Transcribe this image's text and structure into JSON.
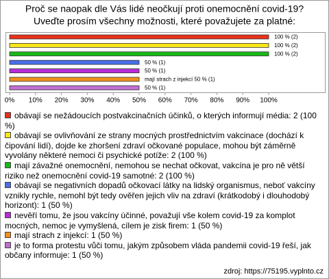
{
  "chart_data": {
    "type": "bar",
    "orientation": "horizontal",
    "title": "Proč se naopak dle Vás lidé neočkují proti onemocnění covid-19?",
    "subtitle": "Uveďte prosím všechny možnosti, které považujete za platné:",
    "categories": [
      "obávají se nežádoucích postvakcinačních účinků, o kterých informují média: 2 (100 %)",
      "obávají se ovlivňování ze strany mocných prostřednictvím vakcinace (dochází k čipování lidí), dojde ke zhoršení zdraví očkované populace, mohou být záměrně vyvolány některé nemoci či psychické potíže: 2 (100 %)",
      "mají závažné onemocnění, nemohou se nechat očkovat, vakcína je pro ně větší riziko než onemocnění covid-19 samotné: 2 (100 %)",
      "obávají se negativních dopadů očkovací látky na lidský organismus, neboť vakcíny vznikly rychle, nemohl být tedy ověřen jejich vliv na zdraví (krátkodobý i dlouhodobý horizont): 1 (50 %)",
      "nevěří tomu, že jsou vakcíny účinné, považují vše kolem covid-19 za komplot mocných, nemoc je vymyšlená, cílem je zisk firem: 1 (50 %)",
      "mají strach z injekcí: 1 (50 %)",
      "je to forma protestu vůči tomu, jakým způsobem vláda pandemii covid-19 řeší, jak občany informuje: 1 (50 %)"
    ],
    "values": [
      100,
      100,
      100,
      50,
      50,
      50,
      50
    ],
    "value_labels": [
      "100 % (2)",
      "100 % (2)",
      "100 % (2)",
      "50 % (1)",
      "50 % (1)",
      "mají strach z injekcí 50 % (1)",
      "50 % (1)"
    ],
    "colors": [
      "#e8321c",
      "#f8e61c",
      "#18b818",
      "#4a6ee8",
      "#b82cd8",
      "#f0901c",
      "#c070d0"
    ],
    "xlim": [
      0,
      100
    ],
    "xticks": [
      {
        "value": 0,
        "label": "0%"
      },
      {
        "value": 10,
        "label": "10%"
      },
      {
        "value": 20,
        "label": "20%"
      },
      {
        "value": 30,
        "label": "30%"
      },
      {
        "value": 40,
        "label": "40%"
      },
      {
        "value": 50,
        "label": "50%"
      },
      {
        "value": 60,
        "label": "60%"
      },
      {
        "value": 70,
        "label": "70%"
      },
      {
        "value": 80,
        "label": "80%"
      },
      {
        "value": 90,
        "label": "90%"
      },
      {
        "value": 100,
        "label": "100%"
      }
    ],
    "grid": false,
    "source": "zdroj: https://75195.vyplnto.cz"
  }
}
